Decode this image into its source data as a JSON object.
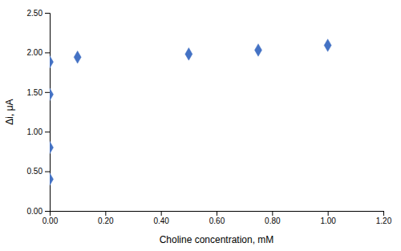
{
  "chart_data": {
    "type": "scatter",
    "x": [
      0.0,
      0.0,
      0.0,
      0.0,
      0.1,
      0.5,
      0.75,
      1.0
    ],
    "y": [
      0.4,
      0.8,
      1.47,
      1.88,
      1.94,
      1.98,
      2.03,
      2.09
    ],
    "color": "#4472C4",
    "marker": "diamond",
    "xlabel": "Choline concentration, mM",
    "ylabel": "Δi, μA",
    "xlim": [
      0.0,
      1.2
    ],
    "ylim": [
      0.0,
      2.5
    ],
    "xticks": [
      {
        "value": 0.0,
        "label": "0.00"
      },
      {
        "value": 0.2,
        "label": "0.20"
      },
      {
        "value": 0.4,
        "label": "0.40"
      },
      {
        "value": 0.6,
        "label": "0.60"
      },
      {
        "value": 0.8,
        "label": "0.80"
      },
      {
        "value": 1.0,
        "label": "1.00"
      },
      {
        "value": 1.2,
        "label": "1.20"
      }
    ],
    "yticks": [
      {
        "value": 0.0,
        "label": "0.00"
      },
      {
        "value": 0.5,
        "label": "0.50"
      },
      {
        "value": 1.0,
        "label": "1.00"
      },
      {
        "value": 1.5,
        "label": "1.50"
      },
      {
        "value": 2.0,
        "label": "2.00"
      },
      {
        "value": 2.5,
        "label": "2.50"
      }
    ],
    "grid": false
  }
}
